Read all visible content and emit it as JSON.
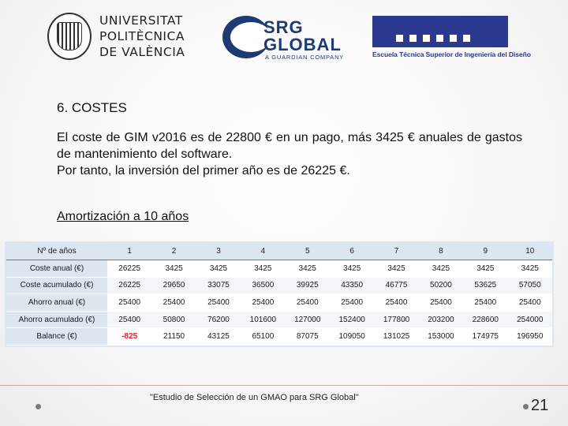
{
  "logos": {
    "upv": [
      "UNIVERSITAT",
      "POLITÈCNICA",
      "DE VALÈNCIA"
    ],
    "srg": {
      "line1": "SRG",
      "line2": "GLOBAL",
      "tagline": "A GUARDIAN COMPANY"
    },
    "etsid": "Escuela Técnica Superior de Ingeniería del Diseño"
  },
  "heading": "6. COSTES",
  "paragraph": [
    "El coste de GIM v2016 es de 22800 € en un pago, más 3425 € anuales de gastos de mantenimiento del software.",
    "Por tanto, la inversión del primer año es de 26225 €."
  ],
  "subheading": "Amortización a 10 años",
  "table": {
    "header_label": "Nº de años",
    "years": [
      "1",
      "2",
      "3",
      "4",
      "5",
      "6",
      "7",
      "8",
      "9",
      "10"
    ],
    "rows": [
      {
        "label": "Coste anual (€)",
        "values": [
          "26225",
          "3425",
          "3425",
          "3425",
          "3425",
          "3425",
          "3425",
          "3425",
          "3425",
          "3425"
        ]
      },
      {
        "label": "Coste acumulado (€)",
        "values": [
          "26225",
          "29650",
          "33075",
          "36500",
          "39925",
          "43350",
          "46775",
          "50200",
          "53625",
          "57050"
        ]
      },
      {
        "label": "Ahorro anual (€)",
        "values": [
          "25400",
          "25400",
          "25400",
          "25400",
          "25400",
          "25400",
          "25400",
          "25400",
          "25400",
          "25400"
        ]
      },
      {
        "label": "Ahorro acumulado (€)",
        "values": [
          "25400",
          "50800",
          "76200",
          "101600",
          "127000",
          "152400",
          "177800",
          "203200",
          "228600",
          "254000"
        ]
      },
      {
        "label": "Balance (€)",
        "values": [
          "-825",
          "21150",
          "43125",
          "65100",
          "87075",
          "109050",
          "131025",
          "153000",
          "174975",
          "196950"
        ]
      }
    ]
  },
  "footer": {
    "caption": "\"Estudio de Selección de un GMAO para SRG Global\"",
    "page_number": "21"
  }
}
